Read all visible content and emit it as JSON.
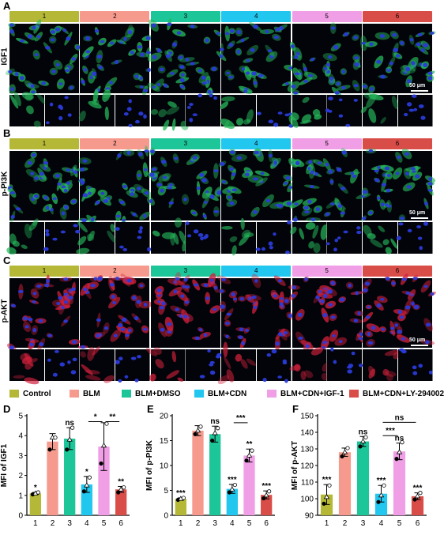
{
  "colors": {
    "control": "#b5b836",
    "blm": "#f59a8d",
    "blm_dmso": "#1dc699",
    "blm_cdn": "#21c7ee",
    "blm_cdn_igf1": "#f09fe6",
    "blm_cdn_ly": "#d94d49"
  },
  "groups": [
    "1",
    "2",
    "3",
    "4",
    "5",
    "6"
  ],
  "panels": [
    {
      "letter": "A",
      "label": "IGF1",
      "stain": "green"
    },
    {
      "letter": "B",
      "label": "p-PI3K",
      "stain": "green"
    },
    {
      "letter": "C",
      "label": "p-AKT",
      "stain": "red"
    }
  ],
  "scale_bar": "50 μm",
  "legend": [
    "Control",
    "BLM",
    "BLM+DMSO",
    "BLM+CDN",
    "BLM+CDN+IGF-1",
    "BLM+CDN+LY-294002"
  ],
  "chart_data": [
    {
      "type": "bar",
      "panel": "D",
      "ylabel": "MFI of IGF1",
      "categories": [
        "1",
        "2",
        "3",
        "4",
        "5",
        "6"
      ],
      "values": [
        1.1,
        3.7,
        3.85,
        1.55,
        3.45,
        1.3
      ],
      "errors": [
        0.05,
        0.4,
        0.55,
        0.4,
        1.2,
        0.15
      ],
      "points": [
        [
          1.05,
          1.1,
          1.15
        ],
        [
          3.3,
          3.9,
          3.9
        ],
        [
          3.3,
          3.8,
          4.4
        ],
        [
          1.2,
          1.5,
          1.9
        ],
        [
          2.6,
          3.5,
          4.6
        ],
        [
          1.15,
          1.3,
          1.4
        ]
      ],
      "ylim": [
        0,
        5
      ],
      "yticks": [
        0,
        1,
        2,
        3,
        4,
        5
      ],
      "sig": [
        "*",
        "",
        "ns",
        "*",
        "",
        "**"
      ],
      "brackets": [
        {
          "from": 4,
          "to": 5,
          "label": "*",
          "y": 4.7
        },
        {
          "from": 5,
          "to": 6,
          "label": "**",
          "y": 4.7
        }
      ]
    },
    {
      "type": "bar",
      "panel": "E",
      "ylabel": "MFI of p-PI3K",
      "categories": [
        "1",
        "2",
        "3",
        "4",
        "5",
        "6"
      ],
      "values": [
        3.3,
        17.0,
        16.3,
        5.3,
        12.0,
        4.1
      ],
      "errors": [
        0.2,
        1.0,
        1.6,
        0.9,
        1.3,
        0.8
      ],
      "points": [
        [
          3.1,
          3.3,
          3.5
        ],
        [
          16.3,
          17.0,
          17.8
        ],
        [
          15.0,
          16.5,
          17.5
        ],
        [
          4.6,
          5.2,
          6.1
        ],
        [
          11.0,
          12.0,
          13.0
        ],
        [
          3.4,
          4.0,
          4.8
        ]
      ],
      "ylim": [
        0,
        20
      ],
      "yticks": [
        0,
        5,
        10,
        15,
        20
      ],
      "sig": [
        "***",
        "",
        "ns",
        "***",
        "**",
        "***"
      ],
      "brackets": [
        {
          "from": 4,
          "to": 5,
          "label": "***",
          "y": 18.6
        }
      ]
    },
    {
      "type": "bar",
      "panel": "F",
      "ylabel": "MFI of p-AKT",
      "categories": [
        "1",
        "2",
        "3",
        "4",
        "5",
        "6"
      ],
      "values": [
        102.5,
        128.0,
        134.5,
        103.0,
        128.5,
        101.5
      ],
      "errors": [
        6.0,
        2.5,
        3.0,
        5.0,
        5.0,
        2.0
      ],
      "points": [
        [
          97.0,
          101.0,
          108.0
        ],
        [
          125.5,
          128.0,
          130.5
        ],
        [
          131.5,
          134.5,
          137.0
        ],
        [
          98.0,
          102.0,
          108.0
        ],
        [
          124.0,
          128.0,
          134.0
        ],
        [
          99.5,
          101.5,
          103.5
        ]
      ],
      "ylim": [
        90,
        150
      ],
      "yticks": [
        90,
        100,
        110,
        120,
        130,
        140,
        150
      ],
      "sig": [
        "***",
        "",
        "ns",
        "***",
        "ns",
        "***"
      ],
      "brackets": [
        {
          "from": 4,
          "to": 5,
          "label": "***",
          "y": 138
        },
        {
          "from": 4,
          "to": 6,
          "label": "ns",
          "y": 146
        }
      ]
    }
  ]
}
